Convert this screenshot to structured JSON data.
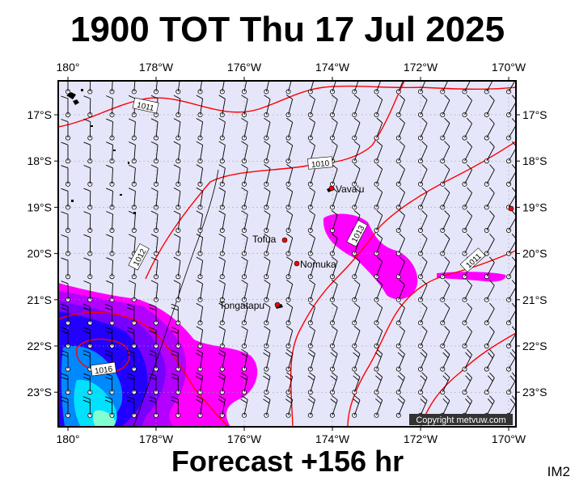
{
  "title": "1900 TOT Thu 17 Jul 2025",
  "footer": "Forecast +156 hr",
  "image_tag": "IM2",
  "copyright": "Copyright metvuw.com",
  "longitude_labels": [
    "180°",
    "178°W",
    "176°W",
    "174°W",
    "172°W",
    "170°W"
  ],
  "latitude_labels": [
    "17°S",
    "18°S",
    "19°S",
    "20°S",
    "21°S",
    "22°S",
    "23°S"
  ],
  "isobar_labels": [
    "1011",
    "1010",
    "1013",
    "1012",
    "1011",
    "1016"
  ],
  "places": [
    {
      "name": "Vava'u",
      "lon": -174.0,
      "lat": -18.6
    },
    {
      "name": "Tofua",
      "lon": -175.1,
      "lat": -19.7
    },
    {
      "name": "Nomuka",
      "lon": -174.8,
      "lat": -20.2
    },
    {
      "name": "Tongatapu",
      "lon": -175.2,
      "lat": -21.1
    },
    {
      "name": "",
      "lon": -169.9,
      "lat": -19.0
    }
  ],
  "map": {
    "lon_range": [
      -180.0,
      -169.8
    ],
    "lat_range": [
      -23.6,
      -16.4
    ],
    "grid": true,
    "background_color": "#e6e6fa",
    "isobar_color": "#ff0000",
    "precip_colors": [
      "#ff00ff",
      "#b400ff",
      "#7700ff",
      "#2200ff",
      "#0088ff",
      "#00e0ff",
      "#80ffd0"
    ],
    "wind_barb_color": "#000000"
  }
}
